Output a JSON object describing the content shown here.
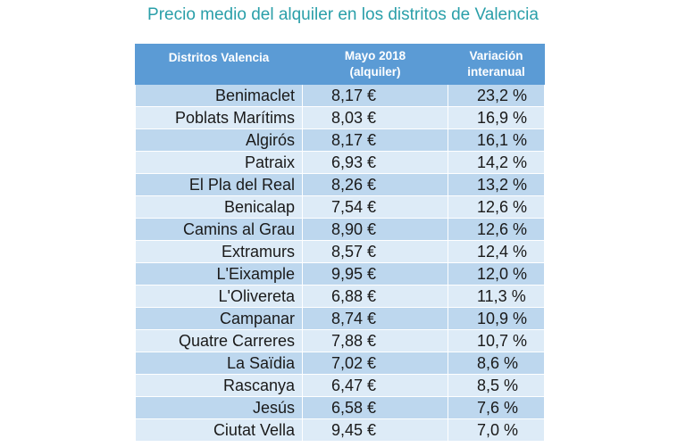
{
  "title": "Precio medio del alquiler en los distritos de Valencia",
  "table": {
    "headers": [
      "Distritos Valencia",
      "Mayo 2018 (alquiler)",
      "Variación interanual"
    ],
    "header_lines": {
      "col1": "Distritos Valencia",
      "col2_line1": "Mayo 2018",
      "col2_line2": "(alquiler)",
      "col3_line1": "Variación",
      "col3_line2": "interanual"
    },
    "rows": [
      {
        "district": "Benimaclet",
        "price": "8,17 €",
        "variation": "23,2 %"
      },
      {
        "district": "Poblats Marítims",
        "price": "8,03 €",
        "variation": "16,9 %"
      },
      {
        "district": "Algirós",
        "price": "8,17 €",
        "variation": "16,1 %"
      },
      {
        "district": "Patraix",
        "price": "6,93 €",
        "variation": "14,2 %"
      },
      {
        "district": "El Pla del Real",
        "price": "8,26 €",
        "variation": "13,2 %"
      },
      {
        "district": "Benicalap",
        "price": "7,54 €",
        "variation": "12,6 %"
      },
      {
        "district": "Camins al Grau",
        "price": "8,90 €",
        "variation": "12,6 %"
      },
      {
        "district": "Extramurs",
        "price": "8,57 €",
        "variation": "12,4 %"
      },
      {
        "district": "L'Eixample",
        "price": "9,95 €",
        "variation": "12,0 %"
      },
      {
        "district": "L'Olivereta",
        "price": "6,88 €",
        "variation": "11,3 %"
      },
      {
        "district": "Campanar",
        "price": "8,74 €",
        "variation": "10,9 %"
      },
      {
        "district": "Quatre Carreres",
        "price": "7,88 €",
        "variation": "10,7 %"
      },
      {
        "district": "La Saïdia",
        "price": "7,02 €",
        "variation": "8,6 %"
      },
      {
        "district": "Rascanya",
        "price": "6,47 €",
        "variation": "8,5 %"
      },
      {
        "district": "Jesús",
        "price": "6,58 €",
        "variation": "7,6 %"
      },
      {
        "district": "Ciutat Vella",
        "price": "9,45 €",
        "variation": "7,0 %"
      }
    ]
  },
  "colors": {
    "title": "#2a9fa9",
    "header_bg": "#5b9bd5",
    "row_dark": "#bdd7ee",
    "row_light": "#ddebf7"
  }
}
